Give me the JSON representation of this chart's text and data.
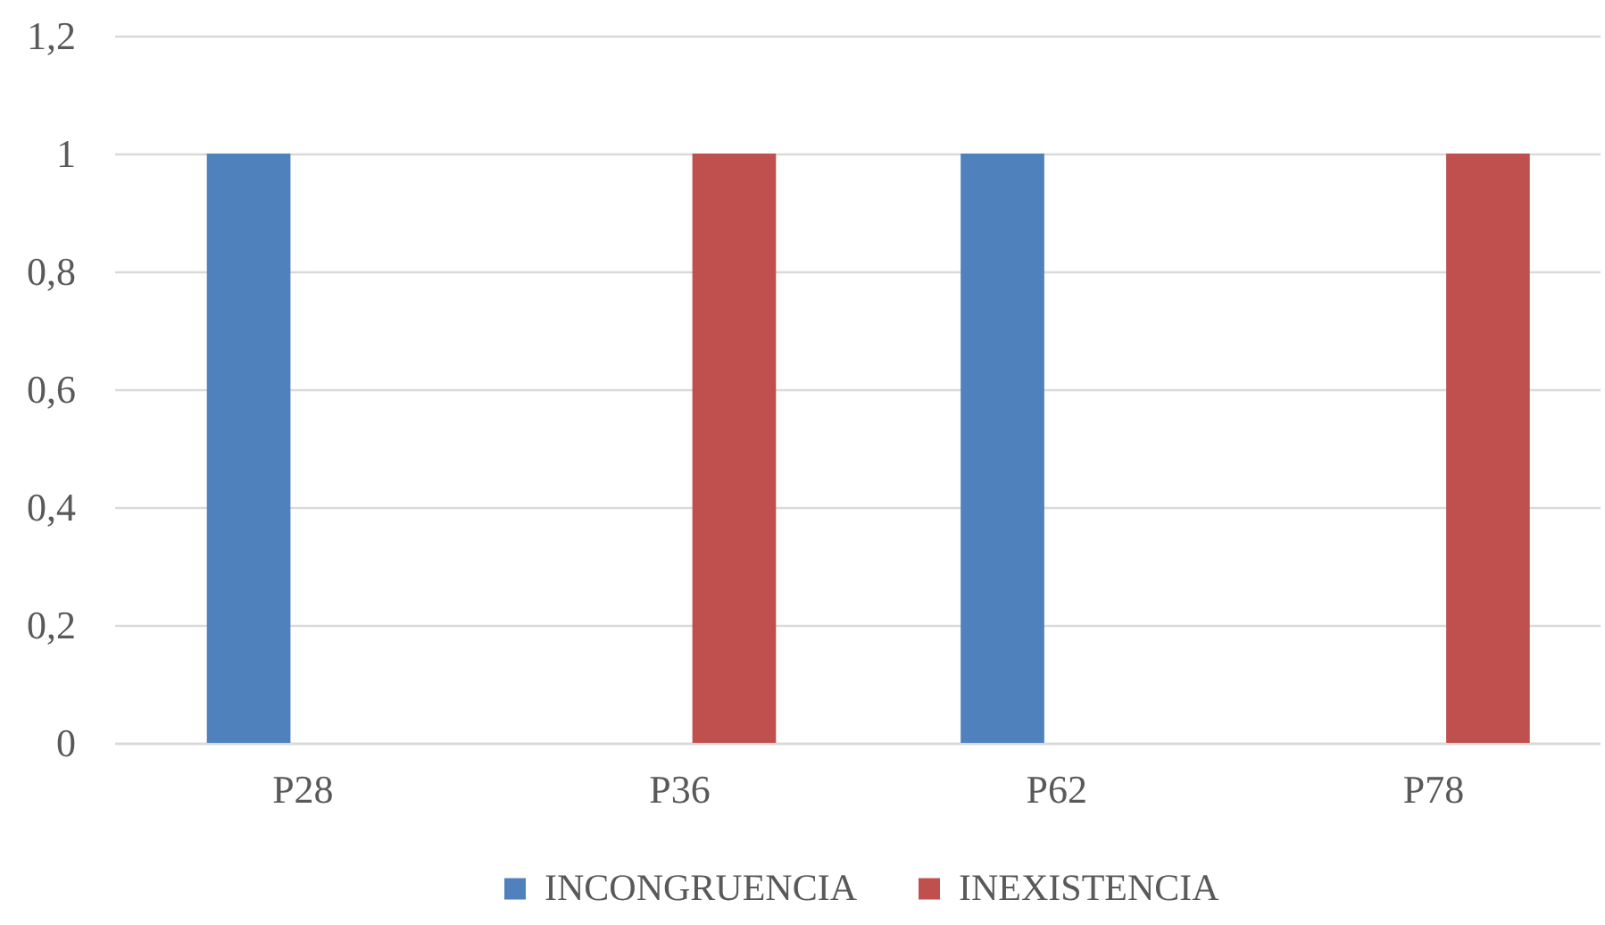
{
  "chart_data": {
    "type": "bar",
    "categories": [
      "P28",
      "P36",
      "P62",
      "P78"
    ],
    "series": [
      {
        "name": "INCONGRUENCIA",
        "color": "#4f81bd",
        "values": [
          1,
          0,
          1,
          0
        ]
      },
      {
        "name": "INEXISTENCIA",
        "color": "#c0504d",
        "values": [
          0,
          1,
          0,
          1
        ]
      }
    ],
    "ylim": [
      0,
      1.2
    ],
    "yticks": [
      0,
      {
        "value": 0.2,
        "label": "0,2"
      },
      {
        "value": 0.4,
        "label": "0,4"
      },
      {
        "value": 0.6,
        "label": "0,6"
      },
      {
        "value": 0.8,
        "label": "0,8"
      },
      1,
      {
        "value": 1.2,
        "label": "1,2"
      }
    ],
    "grid": "y",
    "legend": "bottom"
  }
}
